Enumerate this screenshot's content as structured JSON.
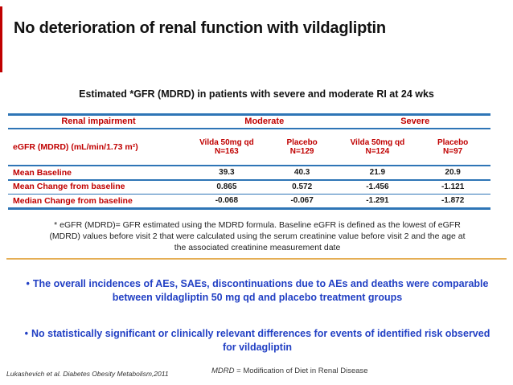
{
  "slide": {
    "title": "No deterioration of renal function with vildagliptin",
    "subtitle": "Estimated *GFR (MDRD) in patients with severe and moderate RI at 24 wks"
  },
  "table": {
    "group_header": {
      "label": "Renal impairment",
      "groups": [
        "Moderate",
        "Severe"
      ]
    },
    "row_header_label": "eGFR (MDRD) (mL/min/1.73 m²)",
    "columns": [
      {
        "line1": "Vilda 50mg qd",
        "line2": "N=163"
      },
      {
        "line1": "Placebo",
        "line2": "N=129"
      },
      {
        "line1": "Vilda 50mg qd",
        "line2": "N=124"
      },
      {
        "line1": "Placebo",
        "line2": "N=97"
      }
    ],
    "rows": [
      {
        "label": "Mean Baseline",
        "values": [
          "39.3",
          "40.3",
          "21.9",
          "20.9"
        ]
      },
      {
        "label": "Mean Change from baseline",
        "values": [
          "0.865",
          "0.572",
          "-1.456",
          "-1.121"
        ]
      },
      {
        "label": "Median Change from baseline",
        "values": [
          "-0.068",
          "-0.067",
          "-1.291",
          "-1.872"
        ]
      }
    ]
  },
  "footnote": "* eGFR (MDRD)= GFR estimated using the MDRD formula. Baseline eGFR is defined as the lowest of eGFR (MDRD) values before visit 2 that were calculated using the serum creatinine value before visit 2 and the age at the associated creatinine measurement date",
  "bullets": {
    "marker": "•",
    "item1": "The overall incidences of AEs, SAEs, discontinuations due to AEs and deaths were comparable between vildagliptin 50 mg qd and placebo treatment groups",
    "item2": "No statistically significant or clinically relevant differences for events of identified risk observed for vildagliptin"
  },
  "footer": {
    "citation": "Lukashevich et al. Diabetes Obesity Metabolism,2011",
    "abbrev_term": "MDRD",
    "abbrev_rest": " = Modification of Diet in Renal Disease"
  },
  "colors": {
    "accent_red": "#c00000",
    "rule_blue": "#2e75b6",
    "bullet_blue": "#2240c4",
    "divider_gold": "#e5ae55"
  }
}
